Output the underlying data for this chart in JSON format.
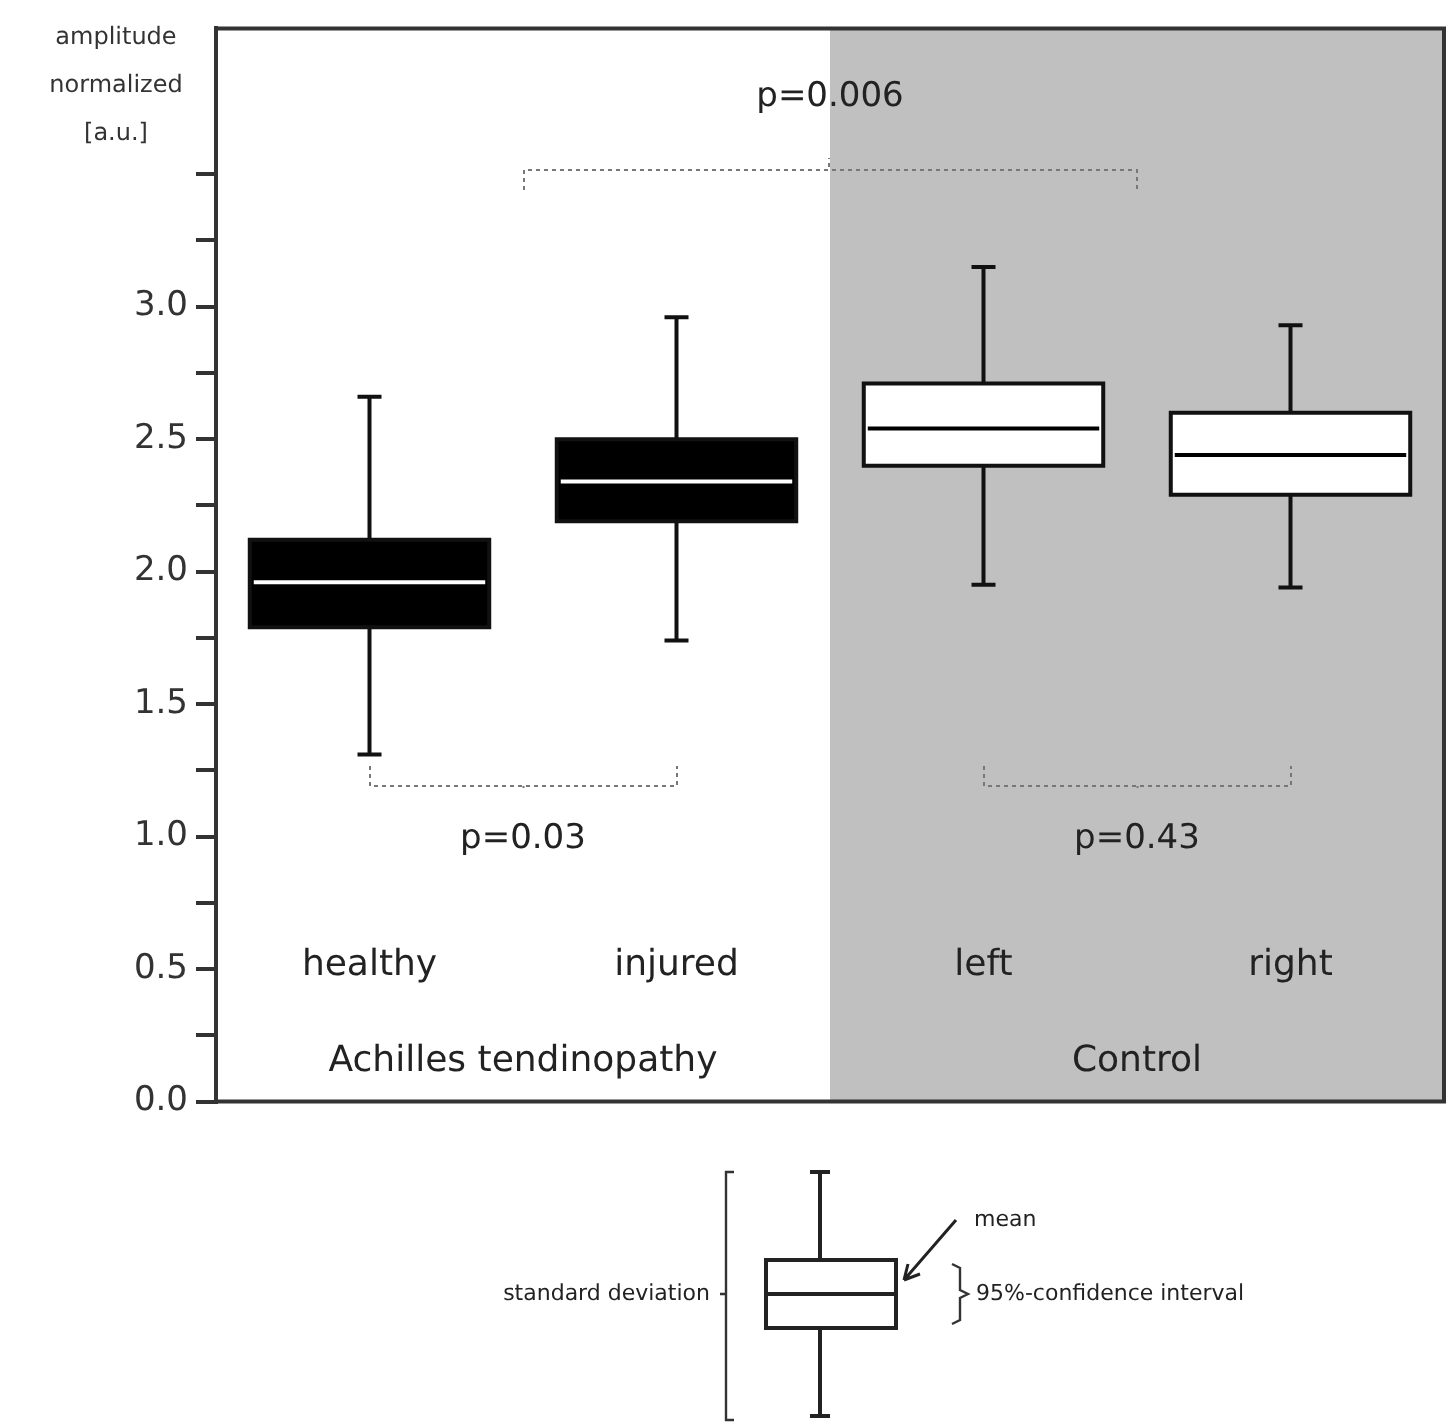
{
  "chart_data": {
    "type": "box",
    "ylabel": "amplitude normalized [a.u.]",
    "categories": [
      "healthy",
      "injured",
      "left",
      "right"
    ],
    "boxes": [
      {
        "low": 1.31,
        "q1": 1.79,
        "median": 1.96,
        "q3": 2.12,
        "high": 2.66
      },
      {
        "low": 1.74,
        "q1": 2.19,
        "median": 2.34,
        "q3": 2.5,
        "high": 2.96
      },
      {
        "low": 1.95,
        "q1": 2.4,
        "median": 2.54,
        "q3": 2.71,
        "high": 3.15
      },
      {
        "low": 1.94,
        "q1": 2.29,
        "median": 2.44,
        "q3": 2.6,
        "high": 2.93
      }
    ],
    "colors": [
      "#000000",
      "#000000",
      "#ffffff",
      "#ffffff"
    ],
    "ylim": [
      0,
      4.05
    ],
    "yticks": [
      {
        "value": 0,
        "label": "0.0"
      },
      {
        "value": 0.25,
        "label": null
      },
      {
        "value": 0.5,
        "label": "0.5"
      },
      {
        "value": 0.75,
        "label": null
      },
      {
        "value": 1,
        "label": "1.0"
      },
      {
        "value": 1.25,
        "label": null
      },
      {
        "value": 1.5,
        "label": "1.5"
      },
      {
        "value": 1.75,
        "label": null
      },
      {
        "value": 2,
        "label": "2.0"
      },
      {
        "value": 2.25,
        "label": null
      },
      {
        "value": 2.5,
        "label": "2.5"
      },
      {
        "value": 2.75,
        "label": null
      },
      {
        "value": 3,
        "label": "3.0"
      },
      {
        "value": 3.25,
        "label": null
      },
      {
        "value": 3.5,
        "label": null
      }
    ],
    "bands": [
      {
        "axis": "x",
        "from": "left",
        "to": "right",
        "label": "Control",
        "color": "#c0c0c0"
      }
    ],
    "annotations": [
      "p=0.006",
      "p=0.03",
      "p=0.43",
      "Achilles tendinopathy",
      "standard deviation",
      "mean",
      "95%-confidence interval"
    ],
    "grid": false
  }
}
